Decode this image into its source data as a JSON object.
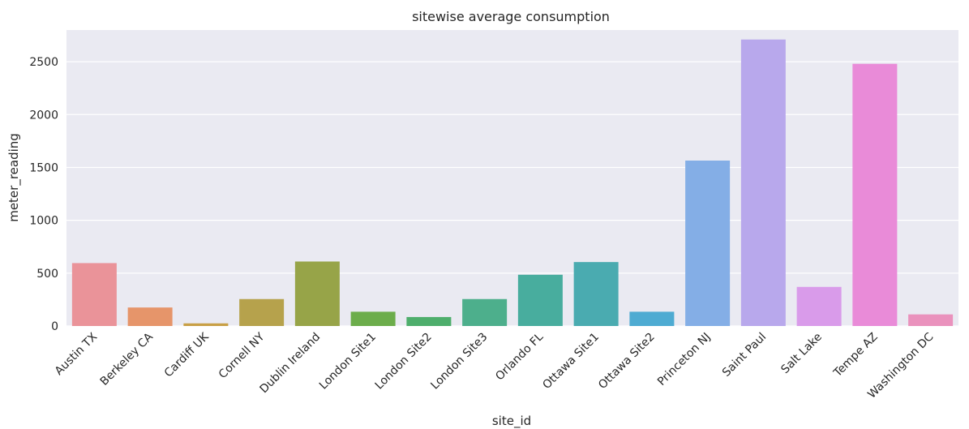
{
  "chart_data": {
    "type": "bar",
    "title": "sitewise average consumption",
    "xlabel": "site_id",
    "ylabel": "meter_reading",
    "ylim": [
      0,
      2800
    ],
    "yticks": [
      0,
      500,
      1000,
      1500,
      2000,
      2500
    ],
    "grid": true,
    "legend": "none",
    "categories": [
      "Austin TX",
      "Berkeley CA",
      "Cardiff UK",
      "Cornell NY",
      "Dublin Ireland",
      "London Site1",
      "London Site2",
      "London Site3",
      "Orlando FL",
      "Ottawa Site1",
      "Ottawa Site2",
      "Princeton NJ",
      "Saint Paul",
      "Salt Lake",
      "Tempe AZ",
      "Washington DC"
    ],
    "values": [
      595,
      175,
      25,
      255,
      610,
      135,
      85,
      255,
      485,
      605,
      135,
      1565,
      2710,
      370,
      2480,
      110
    ],
    "colors": [
      "#ea9399",
      "#e6956a",
      "#c8a046",
      "#b6a24c",
      "#97a448",
      "#6cad4b",
      "#4eae6c",
      "#4daf8c",
      "#48ad9e",
      "#4aabb0",
      "#4eabd2",
      "#84aee6",
      "#b8a8ec",
      "#d99bea",
      "#e98bd8",
      "#ea92bd"
    ]
  }
}
